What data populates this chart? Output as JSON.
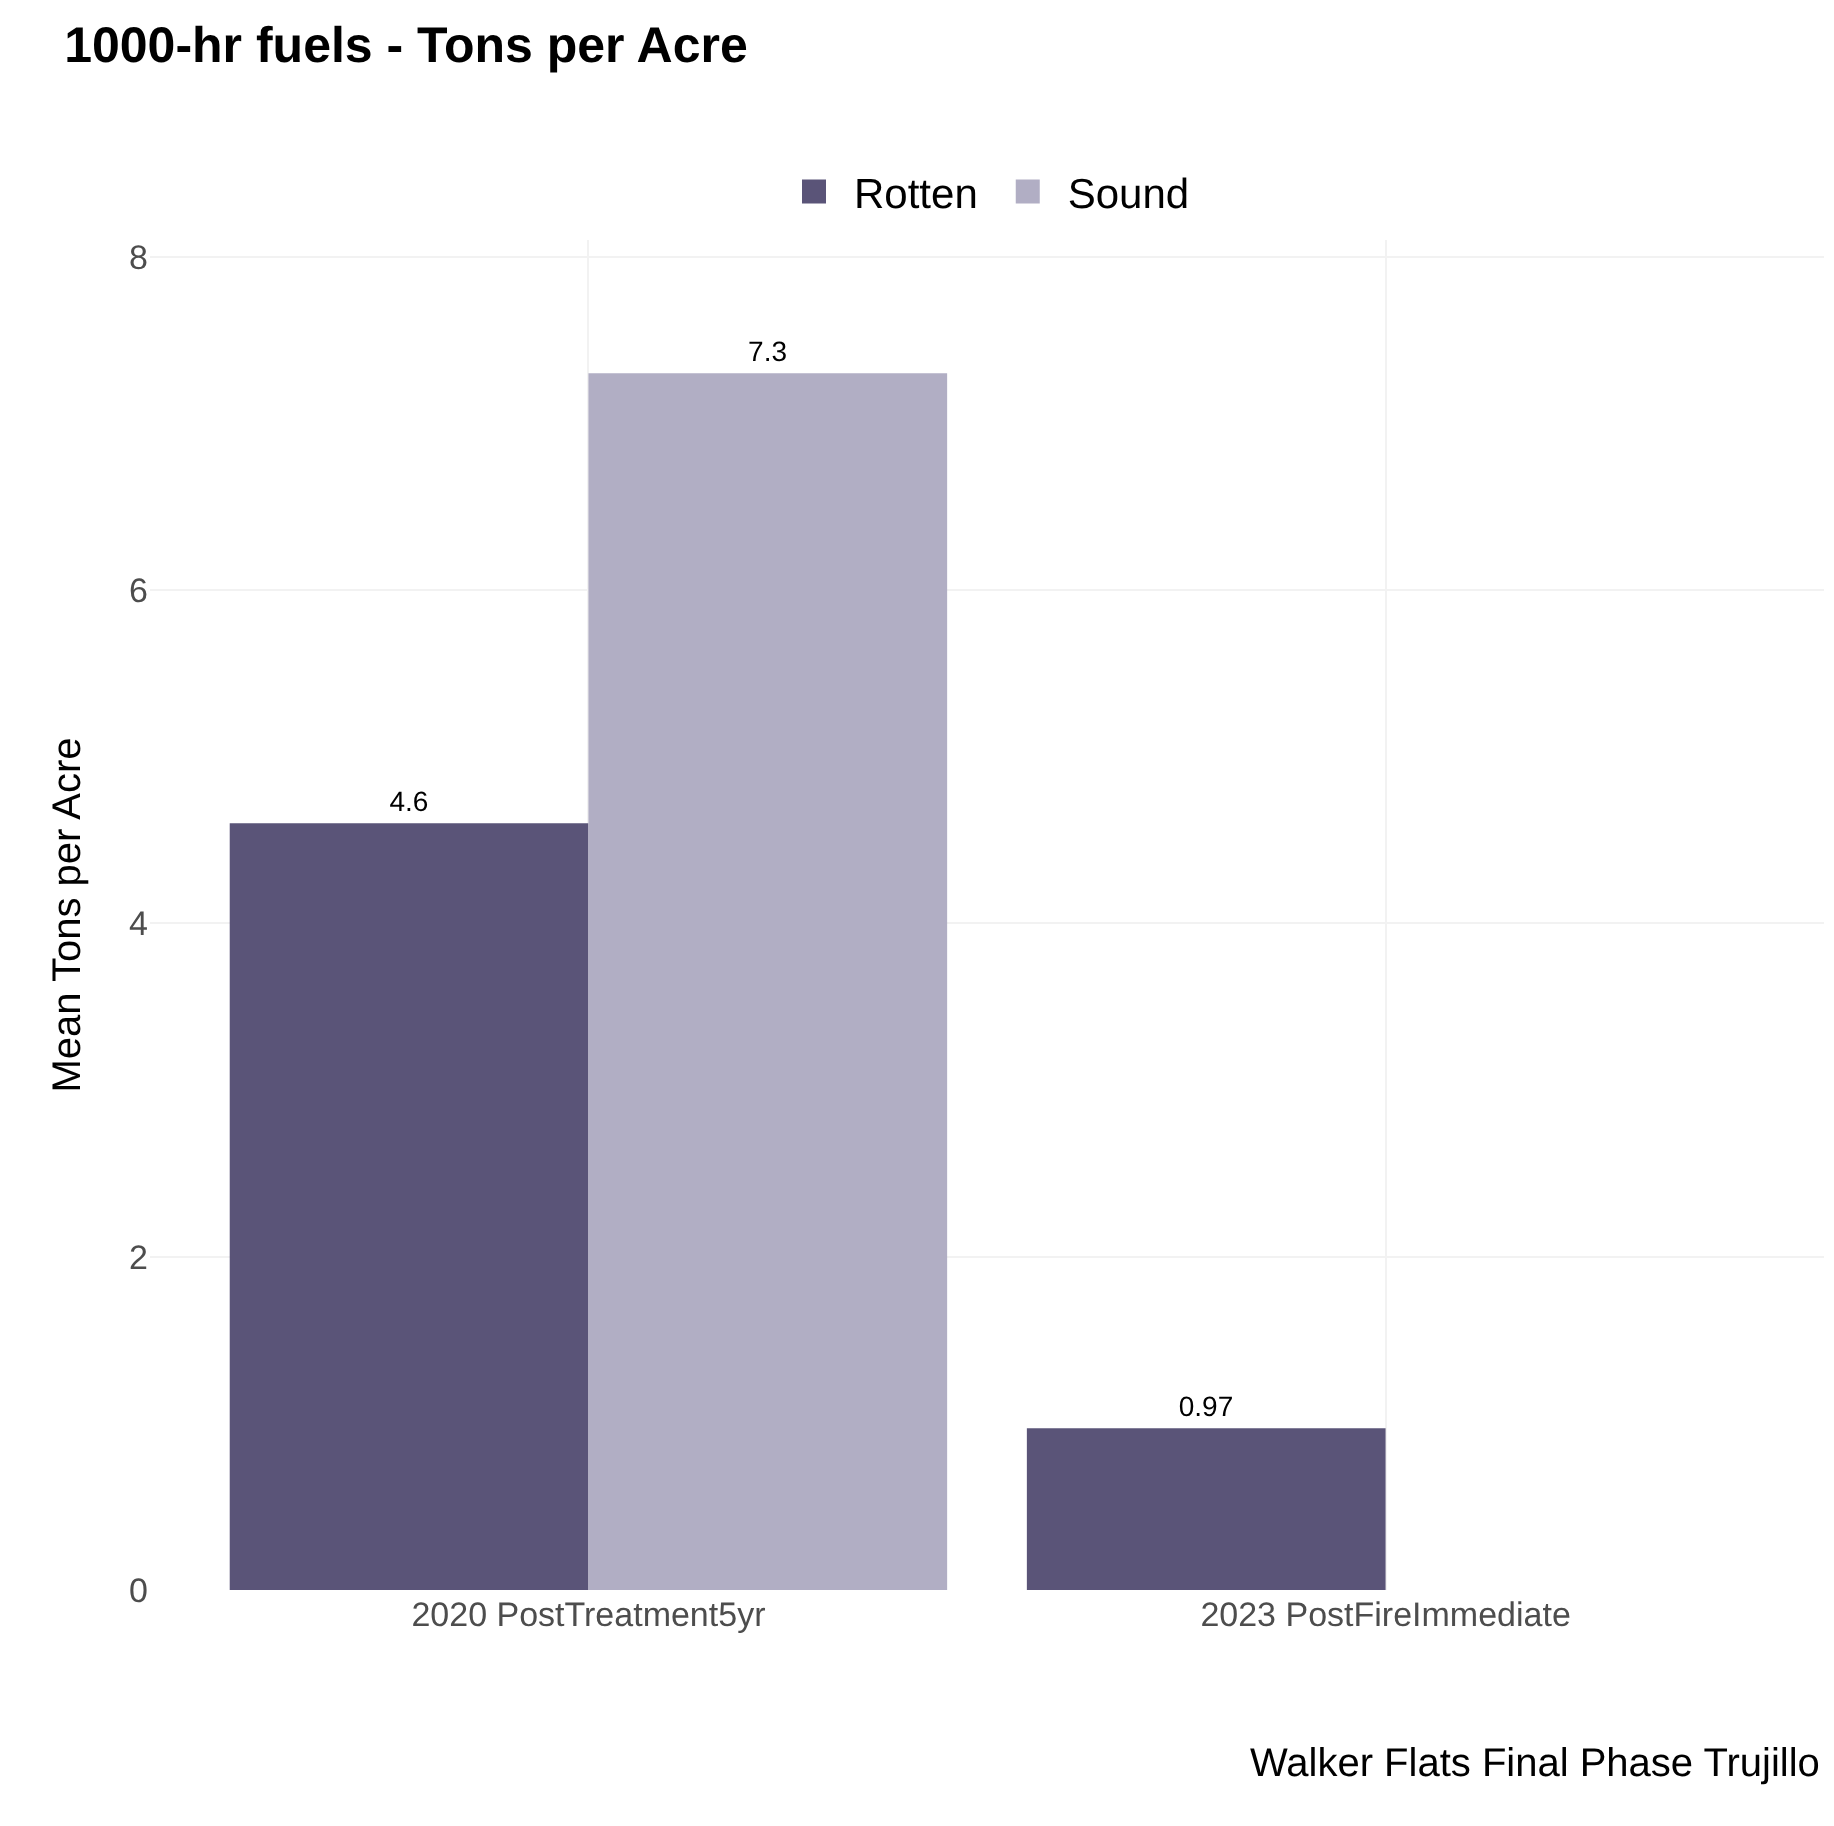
{
  "chart_data": {
    "type": "bar",
    "title": "1000-hr fuels - Tons per Acre",
    "xlabel": "Walker Flats Final Phase Trujillo",
    "ylabel": "Mean Tons per Acre",
    "categories": [
      "2020 PostTreatment5yr",
      "2023 PostFireImmediate"
    ],
    "series": [
      {
        "name": "Rotten",
        "color": "#5a5478",
        "values": [
          4.6,
          0.97
        ]
      },
      {
        "name": "Sound",
        "color": "#b1aec4",
        "values": [
          7.3,
          null
        ]
      }
    ],
    "ylim": [
      0,
      8.1
    ],
    "yticks": [
      0,
      2,
      4,
      6,
      8
    ],
    "grid": true,
    "legend": "top",
    "data_labels": true
  }
}
